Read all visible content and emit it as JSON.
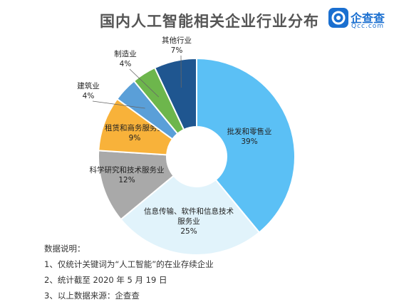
{
  "title": "国内人工智能相关企业行业分布",
  "logo": {
    "name": "企查查",
    "sub": "Qcc.com"
  },
  "chart_data": {
    "type": "pie",
    "style": "donut",
    "title": "国内人工智能相关企业行业分布",
    "slices": [
      {
        "label": "批发和零售业",
        "value": 39,
        "value_label": "39%",
        "color": "#5bc0f5"
      },
      {
        "label": "信息传输、软件和信息技术服务业",
        "value": 25,
        "value_label": "25%",
        "color": "#e1f3fb"
      },
      {
        "label": "科学研究和技术服务业",
        "value": 12,
        "value_label": "12%",
        "color": "#a9a9a9"
      },
      {
        "label": "租赁和商务服务业",
        "value": 9,
        "value_label": "9%",
        "color": "#f8b23a"
      },
      {
        "label": "建筑业",
        "value": 4,
        "value_label": "4%",
        "color": "#5a9fd8"
      },
      {
        "label": "制造业",
        "value": 4,
        "value_label": "4%",
        "color": "#6db64c"
      },
      {
        "label": "其他行业",
        "value": 7,
        "value_label": "7%",
        "color": "#1f5690"
      }
    ]
  },
  "notes": {
    "heading": "数据说明：",
    "items": [
      "1、仅统计关键词为“人工智能”的在业存续企业",
      "2、统计截至 2020 年 5 月 19 日",
      "3、以上数据来源：企查查"
    ]
  }
}
